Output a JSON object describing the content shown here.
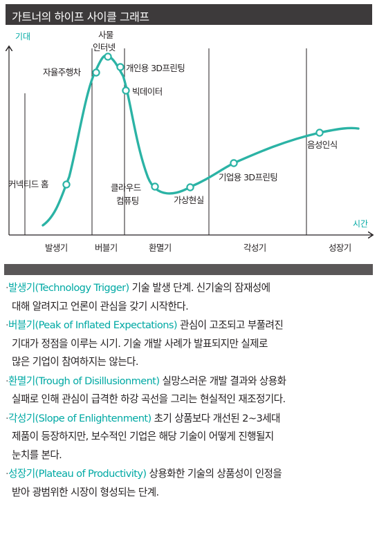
{
  "title": "가트너의 하이프 사이클 그래프",
  "chart_data": {
    "type": "line",
    "title": "가트너의 하이프 사이클 그래프",
    "ylabel": "기대",
    "xlabel": "시간",
    "phases": [
      "발생기",
      "버블기",
      "환멸기",
      "각성기",
      "성장기"
    ],
    "points": [
      {
        "label": "커넥티드 홈",
        "phase": "발생기"
      },
      {
        "label": "자율주행차",
        "phase": "버블기"
      },
      {
        "label": "사물\n인터넷",
        "phase": "버블기"
      },
      {
        "label": "개인용 3D프린팅",
        "phase": "버블기"
      },
      {
        "label": "빅데이터",
        "phase": "환멸기"
      },
      {
        "label": "클라우드\n컴퓨팅",
        "phase": "환멸기"
      },
      {
        "label": "가상현실",
        "phase": "환멸기"
      },
      {
        "label": "기업용 3D프린팅",
        "phase": "각성기"
      },
      {
        "label": "음성인식",
        "phase": "각성기"
      }
    ],
    "colors": {
      "curve": "#2bb3a5",
      "axis": "#231f20"
    }
  },
  "descriptions": [
    {
      "bullet": "·",
      "term": "발생기(Technology Trigger)",
      "lines": [
        " 기술 발생 단계. 신기술의 잠재성에",
        "대해 알려지고 언론이 관심을 갖기 시작한다."
      ]
    },
    {
      "bullet": "·",
      "term": "버블기(Peak of Inflated Expectations)",
      "lines": [
        " 관심이 고조되고 부풀려진",
        "기대가 정점을 이루는 시기. 기술 개발 사례가 발표되지만 실제로",
        "많은 기업이 참여하지는 않는다."
      ]
    },
    {
      "bullet": "·",
      "term": "환멸기(Trough of Disillusionment)",
      "lines": [
        " 실망스러운 개발 결과와 상용화",
        "실패로 인해 관심이 급격한 하강 곡선을 그리는 현실적인 재조정기다."
      ]
    },
    {
      "bullet": "·",
      "term": "각성기(Slope of Enlightenment)",
      "lines": [
        " 초기 상품보다 개선된 2~3세대",
        "제품이 등장하지만, 보수적인 기업은 해당 기술이 어떻게 진행될지",
        "눈치를 본다."
      ]
    },
    {
      "bullet": "·",
      "term": "성장기(Plateau of Productivity)",
      "lines": [
        " 상용화한 기술의 상품성이 인정을",
        "받아 광범위한 시장이 형성되는 단계."
      ]
    }
  ]
}
